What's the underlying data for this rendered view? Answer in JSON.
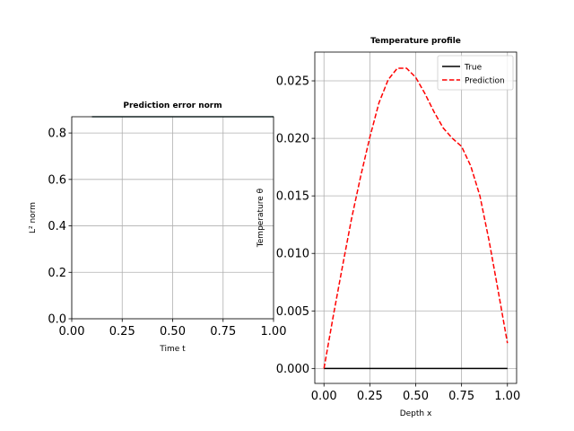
{
  "chart_data": [
    {
      "type": "line",
      "title": "Prediction error norm",
      "xlabel": "Time t",
      "ylabel": "L² norm",
      "xlim": [
        0.0,
        1.0
      ],
      "ylim": [
        0.0,
        0.87
      ],
      "xticks": [
        0.0,
        0.25,
        0.5,
        0.75,
        1.0
      ],
      "xtick_labels": [
        "0.00",
        "0.25",
        "0.50",
        "0.75",
        "1.00"
      ],
      "yticks": [
        0.0,
        0.2,
        0.4,
        0.6,
        0.8
      ],
      "ytick_labels": [
        "0.0",
        "0.2",
        "0.4",
        "0.6",
        "0.8"
      ],
      "grid": true,
      "series": [
        {
          "color": "#2f4f4f",
          "x": [
            0.1,
            1.0
          ],
          "y": [
            0.87,
            0.87
          ]
        }
      ]
    },
    {
      "type": "line",
      "title": "Temperature profile",
      "xlabel": "Depth x",
      "ylabel": "Temperature θ",
      "xlim": [
        -0.05,
        1.05
      ],
      "ylim": [
        -0.0013,
        0.0275
      ],
      "xticks": [
        0.0,
        0.25,
        0.5,
        0.75,
        1.0
      ],
      "xtick_labels": [
        "0.00",
        "0.25",
        "0.50",
        "0.75",
        "1.00"
      ],
      "yticks": [
        0.0,
        0.005,
        0.01,
        0.015,
        0.02,
        0.025
      ],
      "ytick_labels": [
        "0.000",
        "0.005",
        "0.010",
        "0.015",
        "0.020",
        "0.025"
      ],
      "grid": true,
      "legend": "top-right",
      "series": [
        {
          "name": "True",
          "color": "#000000",
          "style": "solid",
          "x": [
            0.0,
            1.0
          ],
          "y": [
            0.0,
            0.0
          ]
        },
        {
          "name": "Prediction",
          "color": "#ff0000",
          "style": "dashed",
          "x": [
            0.0,
            0.05,
            0.1,
            0.15,
            0.2,
            0.25,
            0.3,
            0.35,
            0.4,
            0.45,
            0.5,
            0.55,
            0.6,
            0.65,
            0.7,
            0.75,
            0.8,
            0.85,
            0.9,
            0.95,
            1.0
          ],
          "y": [
            0.0,
            0.0045,
            0.0088,
            0.013,
            0.0167,
            0.0201,
            0.0231,
            0.0251,
            0.0261,
            0.0261,
            0.0253,
            0.0239,
            0.0223,
            0.0209,
            0.02,
            0.0193,
            0.0176,
            0.015,
            0.0111,
            0.0067,
            0.0022
          ]
        }
      ]
    }
  ]
}
